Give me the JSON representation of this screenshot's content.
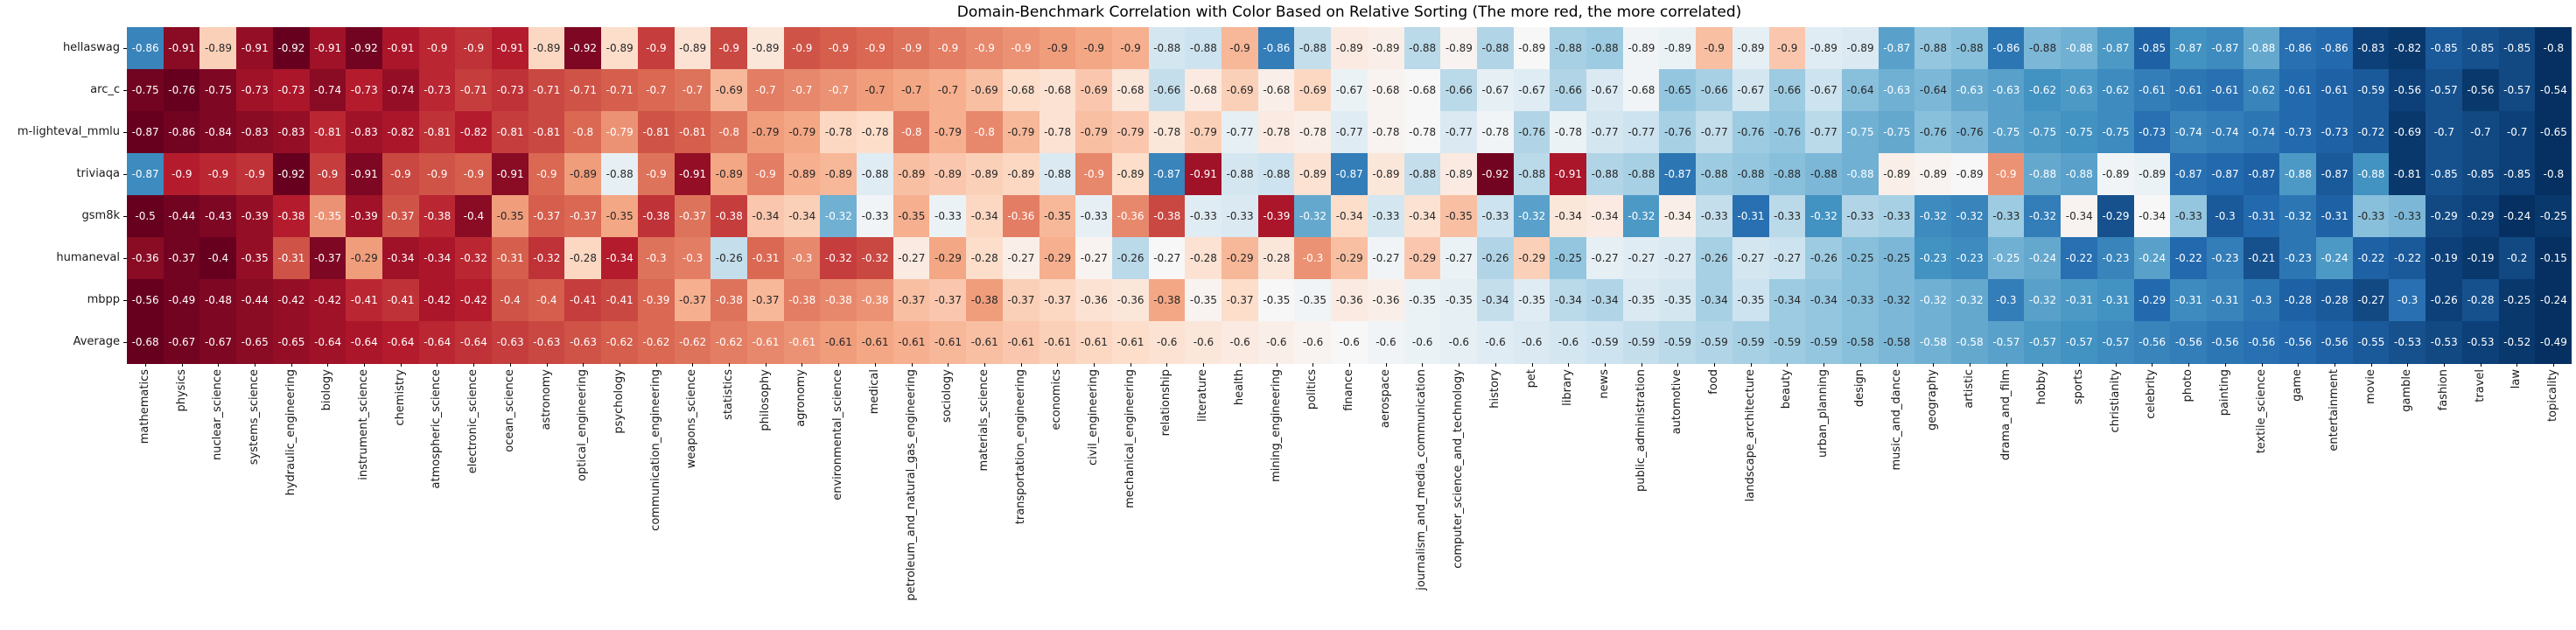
{
  "figure": {
    "title": "Domain-Benchmark Correlation with Color Based on Relative Sorting (The more red, the more correlated)"
  },
  "chart_data": {
    "type": "heatmap",
    "title": "Domain-Benchmark Correlation with Color Based on Relative Sorting (The more red, the more correlated)",
    "color_scale": {
      "name": "RdBu",
      "mapping": "color encodes the rank of each value within its row (relative sorting): most negative correlation = dark red, least negative = dark blue",
      "red_end": "#67001f",
      "mid": "#f7f7f7",
      "blue_end": "#053061"
    },
    "value_range": [
      -0.92,
      -0.15
    ],
    "row_labels": [
      "hellaswag",
      "arc_c",
      "m-lighteval_mmlu",
      "triviaqa",
      "gsm8k",
      "humaneval",
      "mbpp",
      "Average"
    ],
    "col_labels": [
      "mathematics",
      "physics",
      "nuclear_science",
      "systems_science",
      "hydraulic_engineering",
      "biology",
      "instrument_science",
      "chemistry",
      "atmospheric_science",
      "electronic_science",
      "ocean_science",
      "astronomy",
      "optical_engineering",
      "psychology",
      "communication_engineering",
      "weapons_science",
      "statistics",
      "philosophy",
      "agronomy",
      "environmental_science",
      "medical",
      "petroleum_and_natural_gas_engineering",
      "sociology",
      "materials_science",
      "transportation_engineering",
      "economics",
      "civil_engineering",
      "mechanical_engineering",
      "relationship",
      "literature",
      "health",
      "mining_engineering",
      "politics",
      "finance",
      "aerospace",
      "journalism_and_media_communication",
      "computer_science_and_technology",
      "history",
      "pet",
      "library",
      "news",
      "public_administration",
      "automotive",
      "food",
      "landscape_architecture",
      "beauty",
      "urban_planning",
      "design",
      "music_and_dance",
      "geography",
      "artistic",
      "drama_and_film",
      "hobby",
      "sports",
      "christianity",
      "celebrity",
      "photo",
      "painting",
      "textile_science",
      "game",
      "entertainment",
      "movie",
      "gamble",
      "fashion",
      "travel",
      "law",
      "topicality"
    ],
    "values": [
      [
        -0.86,
        -0.91,
        -0.89,
        -0.91,
        -0.92,
        -0.91,
        -0.92,
        -0.91,
        -0.9,
        -0.9,
        -0.91,
        -0.89,
        -0.92,
        -0.89,
        -0.9,
        -0.89,
        -0.9,
        -0.89,
        -0.9,
        -0.9,
        -0.9,
        -0.9,
        -0.9,
        -0.9,
        -0.9,
        -0.9,
        -0.9,
        -0.9,
        -0.88,
        -0.88,
        -0.9,
        -0.86,
        -0.88,
        -0.89,
        -0.89,
        -0.88,
        -0.89,
        -0.88,
        -0.89,
        -0.88,
        -0.88,
        -0.89,
        -0.89,
        -0.9,
        -0.89,
        -0.9,
        -0.89,
        -0.89,
        -0.87,
        -0.88,
        -0.88,
        -0.86,
        -0.88,
        -0.88,
        -0.87,
        -0.85,
        -0.87,
        -0.87,
        -0.88,
        -0.86,
        -0.86,
        -0.83,
        -0.82,
        -0.85,
        -0.85,
        -0.85,
        -0.8
      ],
      [
        -0.75,
        -0.76,
        -0.75,
        -0.73,
        -0.73,
        -0.74,
        -0.73,
        -0.74,
        -0.73,
        -0.71,
        -0.73,
        -0.71,
        -0.71,
        -0.71,
        -0.7,
        -0.7,
        -0.69,
        -0.7,
        -0.7,
        -0.7,
        -0.7,
        -0.7,
        -0.7,
        -0.69,
        -0.68,
        -0.68,
        -0.69,
        -0.68,
        -0.66,
        -0.68,
        -0.69,
        -0.68,
        -0.69,
        -0.67,
        -0.68,
        -0.68,
        -0.66,
        -0.67,
        -0.67,
        -0.66,
        -0.67,
        -0.68,
        -0.65,
        -0.66,
        -0.67,
        -0.66,
        -0.67,
        -0.64,
        -0.63,
        -0.64,
        -0.63,
        -0.63,
        -0.62,
        -0.63,
        -0.62,
        -0.61,
        -0.61,
        -0.61,
        -0.62,
        -0.61,
        -0.61,
        -0.59,
        -0.56,
        -0.57,
        -0.56,
        -0.57,
        -0.54
      ],
      [
        -0.87,
        -0.86,
        -0.84,
        -0.83,
        -0.83,
        -0.81,
        -0.83,
        -0.82,
        -0.81,
        -0.82,
        -0.81,
        -0.81,
        -0.8,
        -0.79,
        -0.81,
        -0.81,
        -0.8,
        -0.79,
        -0.79,
        -0.78,
        -0.78,
        -0.8,
        -0.79,
        -0.8,
        -0.79,
        -0.78,
        -0.79,
        -0.79,
        -0.78,
        -0.79,
        -0.77,
        -0.78,
        -0.78,
        -0.77,
        -0.78,
        -0.78,
        -0.77,
        -0.78,
        -0.76,
        -0.78,
        -0.77,
        -0.77,
        -0.76,
        -0.77,
        -0.76,
        -0.76,
        -0.77,
        -0.75,
        -0.75,
        -0.76,
        -0.76,
        -0.75,
        -0.75,
        -0.75,
        -0.75,
        -0.73,
        -0.74,
        -0.74,
        -0.74,
        -0.73,
        -0.73,
        -0.72,
        -0.69,
        -0.7,
        -0.7,
        -0.7,
        -0.65
      ],
      [
        -0.87,
        -0.9,
        -0.9,
        -0.9,
        -0.92,
        -0.9,
        -0.91,
        -0.9,
        -0.9,
        -0.9,
        -0.91,
        -0.9,
        -0.89,
        -0.88,
        -0.9,
        -0.91,
        -0.89,
        -0.9,
        -0.89,
        -0.89,
        -0.88,
        -0.89,
        -0.89,
        -0.89,
        -0.89,
        -0.88,
        -0.9,
        -0.89,
        -0.87,
        -0.91,
        -0.88,
        -0.88,
        -0.89,
        -0.87,
        -0.89,
        -0.88,
        -0.89,
        -0.92,
        -0.88,
        -0.91,
        -0.88,
        -0.88,
        -0.87,
        -0.88,
        -0.88,
        -0.88,
        -0.88,
        -0.88,
        -0.89,
        -0.89,
        -0.89,
        -0.9,
        -0.88,
        -0.88,
        -0.89,
        -0.89,
        -0.87,
        -0.87,
        -0.87,
        -0.88,
        -0.87,
        -0.88,
        -0.81,
        -0.85,
        -0.85,
        -0.85,
        -0.8
      ],
      [
        -0.5,
        -0.44,
        -0.43,
        -0.39,
        -0.38,
        -0.35,
        -0.39,
        -0.37,
        -0.38,
        -0.4,
        -0.35,
        -0.37,
        -0.37,
        -0.35,
        -0.38,
        -0.37,
        -0.38,
        -0.34,
        -0.34,
        -0.32,
        -0.33,
        -0.35,
        -0.33,
        -0.34,
        -0.36,
        -0.35,
        -0.33,
        -0.36,
        -0.38,
        -0.33,
        -0.33,
        -0.39,
        -0.32,
        -0.34,
        -0.33,
        -0.34,
        -0.35,
        -0.33,
        -0.32,
        -0.34,
        -0.34,
        -0.32,
        -0.34,
        -0.33,
        -0.31,
        -0.33,
        -0.32,
        -0.33,
        -0.33,
        -0.32,
        -0.32,
        -0.33,
        -0.32,
        -0.34,
        -0.29,
        -0.34,
        -0.33,
        -0.3,
        -0.31,
        -0.32,
        -0.31,
        -0.33,
        -0.33,
        -0.29,
        -0.29,
        -0.24,
        -0.25
      ],
      [
        -0.36,
        -0.37,
        -0.4,
        -0.35,
        -0.31,
        -0.37,
        -0.29,
        -0.34,
        -0.34,
        -0.32,
        -0.31,
        -0.32,
        -0.28,
        -0.34,
        -0.3,
        -0.3,
        -0.26,
        -0.31,
        -0.3,
        -0.32,
        -0.32,
        -0.27,
        -0.29,
        -0.28,
        -0.27,
        -0.29,
        -0.27,
        -0.26,
        -0.27,
        -0.28,
        -0.29,
        -0.28,
        -0.3,
        -0.29,
        -0.27,
        -0.29,
        -0.27,
        -0.26,
        -0.29,
        -0.25,
        -0.27,
        -0.27,
        -0.27,
        -0.26,
        -0.27,
        -0.27,
        -0.26,
        -0.25,
        -0.25,
        -0.23,
        -0.23,
        -0.25,
        -0.24,
        -0.22,
        -0.23,
        -0.24,
        -0.22,
        -0.23,
        -0.21,
        -0.23,
        -0.24,
        -0.22,
        -0.22,
        -0.19,
        -0.19,
        -0.2,
        -0.15
      ],
      [
        -0.56,
        -0.49,
        -0.48,
        -0.44,
        -0.42,
        -0.42,
        -0.41,
        -0.41,
        -0.42,
        -0.42,
        -0.4,
        -0.4,
        -0.41,
        -0.41,
        -0.39,
        -0.37,
        -0.38,
        -0.37,
        -0.38,
        -0.38,
        -0.38,
        -0.37,
        -0.37,
        -0.38,
        -0.37,
        -0.37,
        -0.36,
        -0.36,
        -0.38,
        -0.35,
        -0.37,
        -0.35,
        -0.35,
        -0.36,
        -0.36,
        -0.35,
        -0.35,
        -0.34,
        -0.35,
        -0.34,
        -0.34,
        -0.35,
        -0.35,
        -0.34,
        -0.35,
        -0.34,
        -0.34,
        -0.33,
        -0.32,
        -0.32,
        -0.32,
        -0.3,
        -0.32,
        -0.31,
        -0.31,
        -0.29,
        -0.31,
        -0.31,
        -0.3,
        -0.28,
        -0.28,
        -0.27,
        -0.3,
        -0.26,
        -0.28,
        -0.25,
        -0.24
      ],
      [
        -0.68,
        -0.67,
        -0.67,
        -0.65,
        -0.65,
        -0.64,
        -0.64,
        -0.64,
        -0.64,
        -0.64,
        -0.63,
        -0.63,
        -0.63,
        -0.62,
        -0.62,
        -0.62,
        -0.62,
        -0.61,
        -0.61,
        -0.61,
        -0.61,
        -0.61,
        -0.61,
        -0.61,
        -0.61,
        -0.61,
        -0.61,
        -0.61,
        -0.6,
        -0.6,
        -0.6,
        -0.6,
        -0.6,
        -0.6,
        -0.6,
        -0.6,
        -0.6,
        -0.6,
        -0.6,
        -0.6,
        -0.59,
        -0.59,
        -0.59,
        -0.59,
        -0.59,
        -0.59,
        -0.59,
        -0.58,
        -0.58,
        -0.58,
        -0.58,
        -0.57,
        -0.57,
        -0.57,
        -0.57,
        -0.56,
        -0.56,
        -0.56,
        -0.56,
        -0.56,
        -0.56,
        -0.55,
        -0.53,
        -0.53,
        -0.53,
        -0.52,
        -0.49
      ]
    ]
  }
}
